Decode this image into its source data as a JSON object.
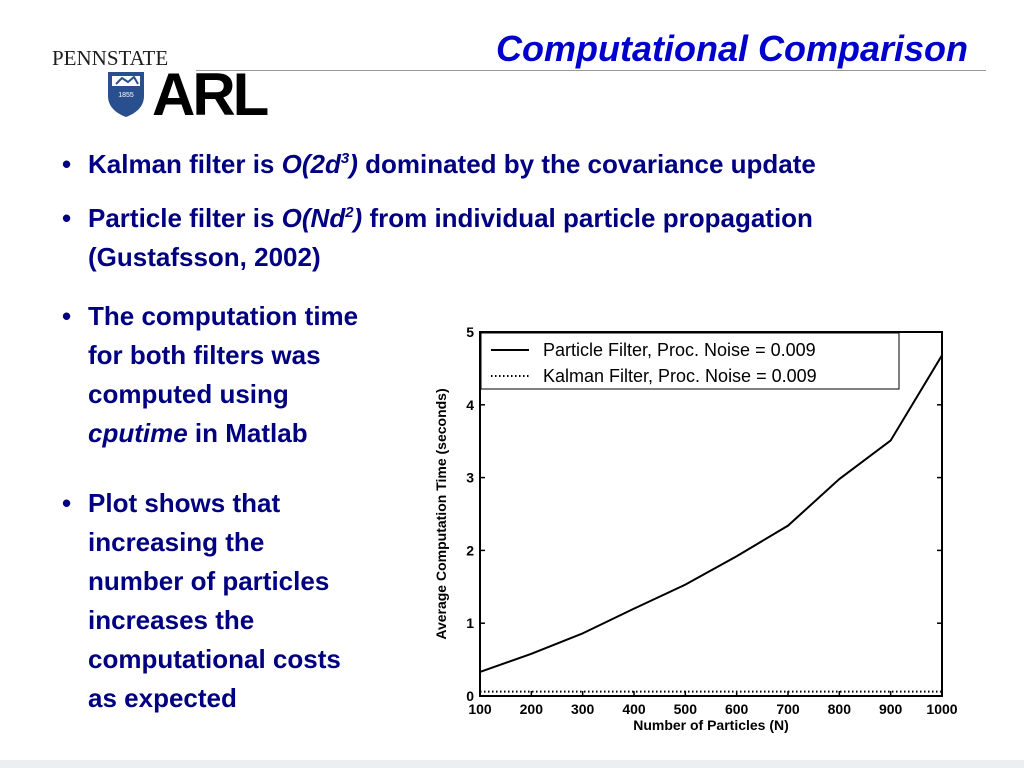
{
  "slide": {
    "title": "Computational Comparison",
    "logo_psu": "PENNSTATE",
    "logo_year": "1855",
    "logo_arl": "ARL"
  },
  "bullets": [
    {
      "text": [
        "Kalman filter is ",
        "O(2d",
        "3",
        ")",
        " dominated by the covariance update"
      ]
    },
    {
      "text": [
        "Particle filter is ",
        "O(Nd",
        "2",
        ")",
        " from individual particle propagation"
      ],
      "continuation": "(Gustafsson, 2002)"
    },
    {
      "lines": [
        "The computation time",
        "for both filters was",
        "computed using",
        "cputime",
        " in Matlab"
      ]
    },
    {
      "lines": [
        "Plot shows that",
        "increasing the",
        "number of particles",
        "increases the",
        "computational costs",
        "as expected"
      ]
    }
  ],
  "chart_data": {
    "type": "line",
    "xlabel": "Number of Particles (N)",
    "ylabel": "Average Computation Time (seconds)",
    "xlim": [
      100,
      1000
    ],
    "ylim": [
      0,
      5
    ],
    "xticks": [
      100,
      200,
      300,
      400,
      500,
      600,
      700,
      800,
      900,
      1000
    ],
    "yticks": [
      0,
      1,
      2,
      3,
      4,
      5
    ],
    "grid": false,
    "legend_position": "top-left",
    "series": [
      {
        "name": "Particle Filter, Proc. Noise = 0.009",
        "style": "solid",
        "x": [
          100,
          200,
          300,
          400,
          500,
          600,
          700,
          800,
          900,
          1000
        ],
        "y": [
          0.33,
          0.58,
          0.86,
          1.2,
          1.53,
          1.92,
          2.34,
          2.98,
          3.51,
          4.68
        ]
      },
      {
        "name": "Kalman Filter, Proc. Noise = 0.009",
        "style": "dotted",
        "x": [
          100,
          200,
          300,
          400,
          500,
          600,
          700,
          800,
          900,
          1000
        ],
        "y": [
          0.06,
          0.06,
          0.06,
          0.06,
          0.06,
          0.06,
          0.06,
          0.06,
          0.06,
          0.06
        ]
      }
    ]
  }
}
